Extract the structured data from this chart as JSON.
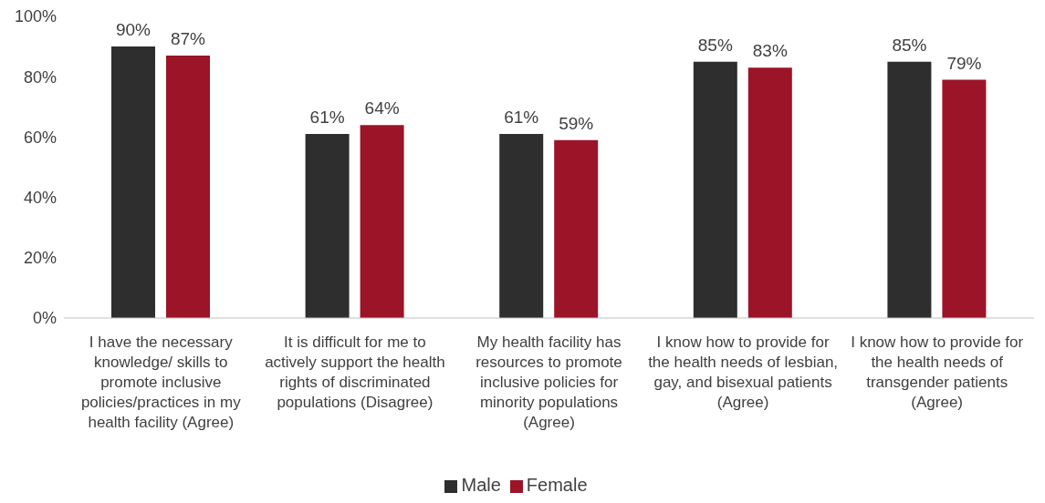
{
  "chart_data": {
    "type": "bar",
    "categories": [
      "I have the necessary knowledge/ skills to promote inclusive policies/practices in my health facility (Agree)",
      "It is difficult for me to actively support the health rights of discriminated populations (Disagree)",
      "My health facility has resources to promote inclusive policies for minority populations (Agree)",
      "I know how to provide for the health needs of lesbian, gay, and bisexual patients (Agree)",
      "I know how to provide for the health needs of transgender patients (Agree)"
    ],
    "series": [
      {
        "name": "Male",
        "color": "#2e2e2e",
        "values": [
          90,
          61,
          61,
          85,
          85
        ],
        "value_labels": [
          "90%",
          "61%",
          "61%",
          "85%",
          "85%"
        ]
      },
      {
        "name": "Female",
        "color": "#9b1428",
        "values": [
          87,
          64,
          59,
          83,
          79
        ],
        "value_labels": [
          "87%",
          "64%",
          "59%",
          "83%",
          "79%"
        ]
      }
    ],
    "ylim": [
      0,
      100
    ],
    "yticks": [
      {
        "value": 0,
        "label": "0%"
      },
      {
        "value": 20,
        "label": "20%"
      },
      {
        "value": 40,
        "label": "40%"
      },
      {
        "value": 60,
        "label": "60%"
      },
      {
        "value": 80,
        "label": "80%"
      },
      {
        "value": 100,
        "label": "100%"
      }
    ],
    "grid": false,
    "legend": "bottom"
  }
}
